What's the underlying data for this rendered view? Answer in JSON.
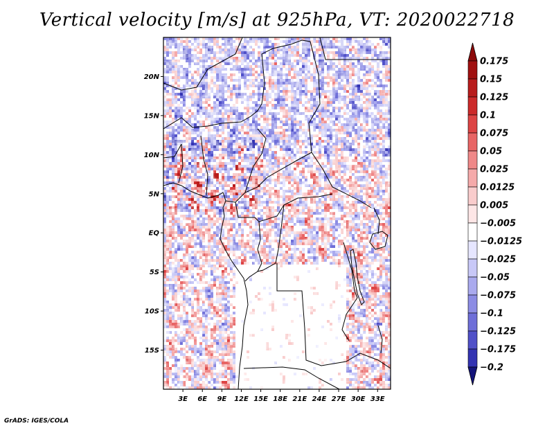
{
  "chart_data": {
    "type": "heatmap",
    "title": "Vertical velocity [m/s] at 925hPa, VT: 2020022718",
    "variable": "Vertical velocity",
    "units": "m/s",
    "level": "925hPa",
    "valid_time": "2020022718",
    "x_axis": {
      "range": [
        0,
        35
      ],
      "ticks": [
        {
          "value": 3,
          "label": "3E"
        },
        {
          "value": 6,
          "label": "6E"
        },
        {
          "value": 9,
          "label": "9E"
        },
        {
          "value": 12,
          "label": "12E"
        },
        {
          "value": 15,
          "label": "15E"
        },
        {
          "value": 18,
          "label": "18E"
        },
        {
          "value": 21,
          "label": "21E"
        },
        {
          "value": 24,
          "label": "24E"
        },
        {
          "value": 27,
          "label": "27E"
        },
        {
          "value": 30,
          "label": "30E"
        },
        {
          "value": 33,
          "label": "33E"
        }
      ]
    },
    "y_axis": {
      "range": [
        -20,
        25
      ],
      "ticks": [
        {
          "value": 20,
          "label": "20N"
        },
        {
          "value": 15,
          "label": "15N"
        },
        {
          "value": 10,
          "label": "10N"
        },
        {
          "value": 5,
          "label": "5N"
        },
        {
          "value": 0,
          "label": "EQ"
        },
        {
          "value": -5,
          "label": "5S"
        },
        {
          "value": -10,
          "label": "10S"
        },
        {
          "value": -15,
          "label": "15S"
        }
      ]
    },
    "colorbar": {
      "levels": [
        {
          "label": "0.175",
          "color": "#a01010"
        },
        {
          "label": "0.15",
          "color": "#b81c1c"
        },
        {
          "label": "0.125",
          "color": "#cc2a2a"
        },
        {
          "label": "0.1",
          "color": "#dd4444"
        },
        {
          "label": "0.075",
          "color": "#e86565"
        },
        {
          "label": "0.05",
          "color": "#ef8888"
        },
        {
          "label": "0.025",
          "color": "#f5aaaa"
        },
        {
          "label": "0.0125",
          "color": "#f9cccc"
        },
        {
          "label": "0.005",
          "color": "#fde6e6"
        },
        {
          "label": "−0.005",
          "color": "#ffffff"
        },
        {
          "label": "−0.0125",
          "color": "#e6e6ff"
        },
        {
          "label": "−0.025",
          "color": "#c8c8f7"
        },
        {
          "label": "−0.05",
          "color": "#aaaaee"
        },
        {
          "label": "−0.075",
          "color": "#8c8ce4"
        },
        {
          "label": "−0.1",
          "color": "#6e6ed8"
        },
        {
          "label": "−0.125",
          "color": "#5050c8"
        },
        {
          "label": "−0.175",
          "color": "#3333b2"
        },
        {
          "label": "−0.2",
          "color": "#1e1e96"
        }
      ],
      "top_extend_color": "#8c0a0a",
      "bottom_extend_color": "#14147a"
    }
  },
  "footer": "GrADS: IGES/COLA"
}
